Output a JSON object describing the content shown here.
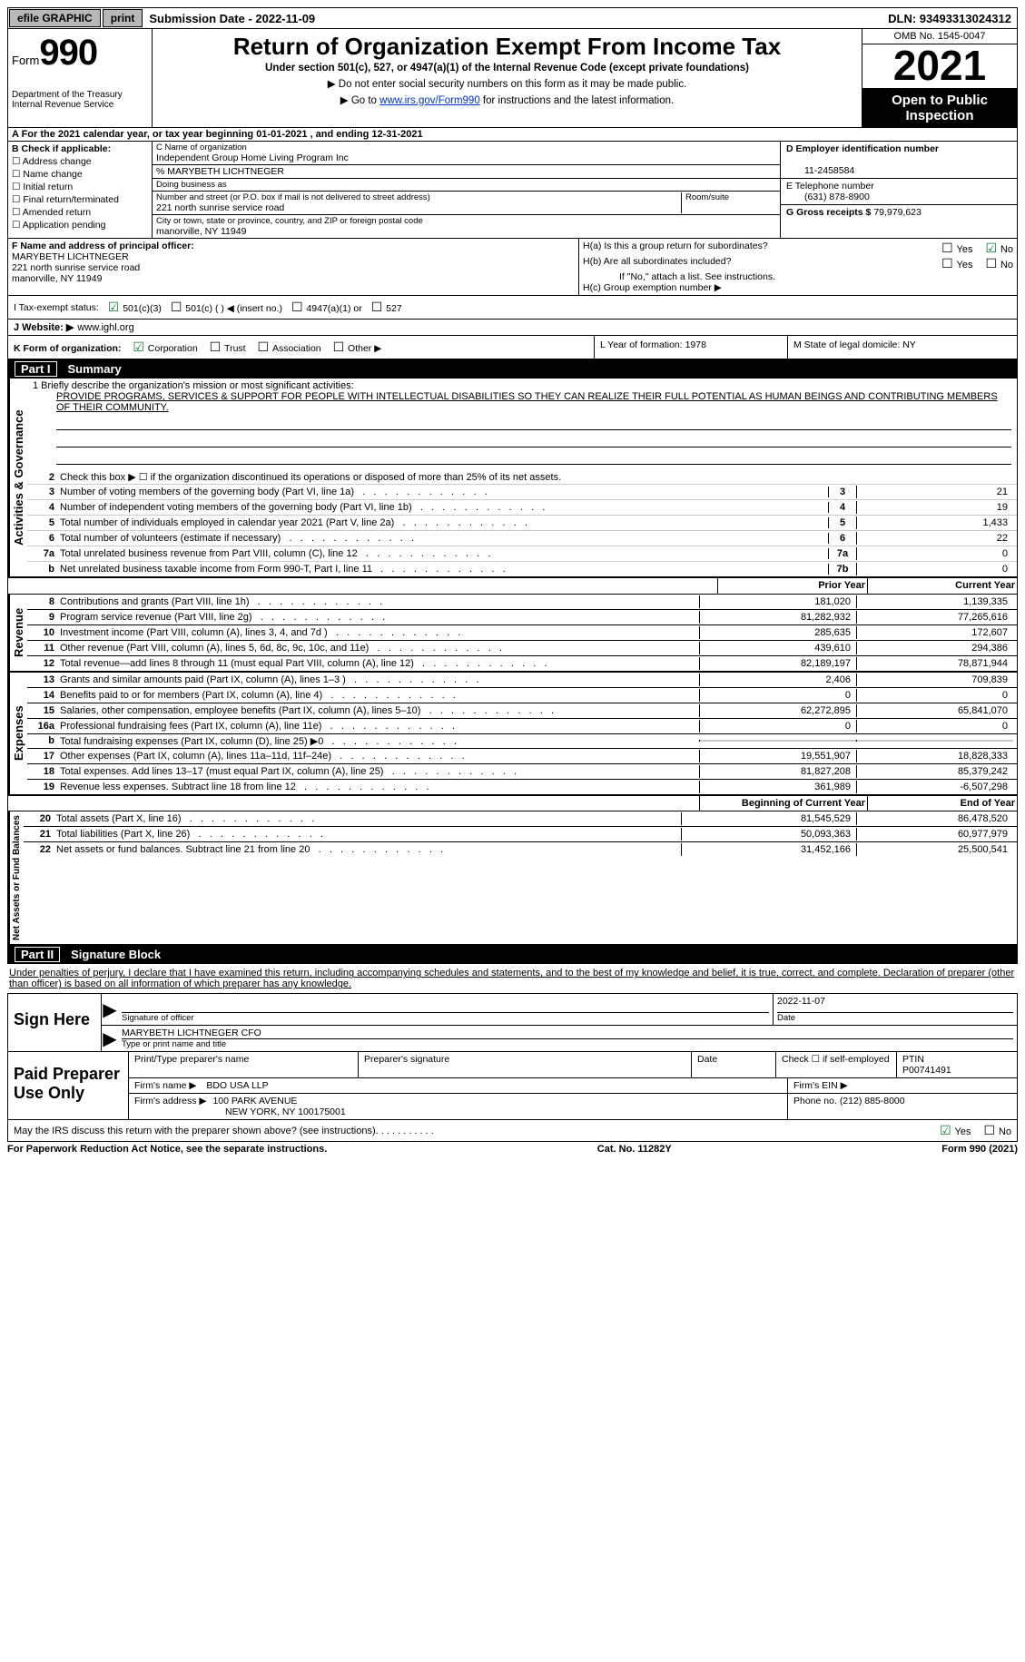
{
  "topbar": {
    "efile": "efile GRAPHIC",
    "print": "print",
    "subdate_label": "Submission Date - 2022-11-09",
    "dln": "DLN: 93493313024312"
  },
  "header": {
    "form_small": "Form",
    "form_big": "990",
    "dept": "Department of the Treasury",
    "irs": "Internal Revenue Service",
    "title": "Return of Organization Exempt From Income Tax",
    "sub1": "Under section 501(c), 527, or 4947(a)(1) of the Internal Revenue Code (except private foundations)",
    "sub2": "▶ Do not enter social security numbers on this form as it may be made public.",
    "sub3_pre": "▶ Go to ",
    "sub3_link": "www.irs.gov/Form990",
    "sub3_post": " for instructions and the latest information.",
    "omb": "OMB No. 1545-0047",
    "year": "2021",
    "open": "Open to Public Inspection"
  },
  "rowA": "A For the 2021 calendar year, or tax year beginning 01-01-2021   , and ending 12-31-2021",
  "colB": {
    "label": "B Check if applicable:",
    "items": [
      "Address change",
      "Name change",
      "Initial return",
      "Final return/terminated",
      "Amended return",
      "Application pending"
    ]
  },
  "colC": {
    "name_lbl": "C Name of organization",
    "name": "Independent Group Home Living Program Inc",
    "care": "% MARYBETH LICHTNEGER",
    "dba_lbl": "Doing business as",
    "addr_lbl": "Number and street (or P.O. box if mail is not delivered to street address)",
    "addr": "221 north sunrise service road",
    "room_lbl": "Room/suite",
    "city_lbl": "City or town, state or province, country, and ZIP or foreign postal code",
    "city": "manorville, NY  11949"
  },
  "colD": {
    "ein_lbl": "D Employer identification number",
    "ein": "11-2458584",
    "tel_lbl": "E Telephone number",
    "tel": "(631) 878-8900",
    "gross_lbl": "G Gross receipts $",
    "gross": "79,979,623"
  },
  "rowF": {
    "f_lbl": "F Name and address of principal officer:",
    "name": "MARYBETH LICHTNEGER",
    "addr1": "221 north sunrise service road",
    "addr2": "manorville, NY  11949",
    "ha": "H(a)  Is this a group return for subordinates?",
    "hb": "H(b)  Are all subordinates included?",
    "hb_note": "If \"No,\" attach a list. See instructions.",
    "hc": "H(c)  Group exemption number ▶"
  },
  "tax": {
    "label": "I   Tax-exempt status:",
    "c3": "501(c)(3)",
    "c": "501(c) (  ) ◀ (insert no.)",
    "a1": "4947(a)(1) or",
    "s527": "527"
  },
  "rowJ": {
    "label": "J   Website: ▶ ",
    "site": "www.ighl.org"
  },
  "rowK": {
    "k": "K Form of organization:",
    "corp": "Corporation",
    "trust": "Trust",
    "assoc": "Association",
    "other": "Other ▶",
    "l": "L Year of formation: 1978",
    "m": "M State of legal domicile: NY"
  },
  "part1": {
    "hdr": "Summary",
    "q1_lbl": "1   Briefly describe the organization's mission or most significant activities:",
    "q1_txt": "PROVIDE PROGRAMS, SERVICES & SUPPORT FOR PEOPLE WITH INTELLECTUAL DISABILITIES SO THEY CAN REALIZE THEIR FULL POTENTIAL AS HUMAN BEINGS AND CONTRIBUTING MEMBERS OF THEIR COMMUNITY.",
    "q2": "Check this box ▶ ☐  if the organization discontinued its operations or disposed of more than 25% of its net assets.",
    "lines_gov": [
      {
        "n": "3",
        "t": "Number of voting members of the governing body (Part VI, line 1a)",
        "box": "3",
        "v": "21"
      },
      {
        "n": "4",
        "t": "Number of independent voting members of the governing body (Part VI, line 1b)",
        "box": "4",
        "v": "19"
      },
      {
        "n": "5",
        "t": "Total number of individuals employed in calendar year 2021 (Part V, line 2a)",
        "box": "5",
        "v": "1,433"
      },
      {
        "n": "6",
        "t": "Total number of volunteers (estimate if necessary)",
        "box": "6",
        "v": "22"
      },
      {
        "n": "7a",
        "t": "Total unrelated business revenue from Part VIII, column (C), line 12",
        "box": "7a",
        "v": "0"
      },
      {
        "n": "b",
        "t": "Net unrelated business taxable income from Form 990-T, Part I, line 11",
        "box": "7b",
        "v": "0"
      }
    ],
    "prior_hdr": "Prior Year",
    "curr_hdr": "Current Year",
    "rev": [
      {
        "n": "8",
        "t": "Contributions and grants (Part VIII, line 1h)",
        "p": "181,020",
        "c": "1,139,335"
      },
      {
        "n": "9",
        "t": "Program service revenue (Part VIII, line 2g)",
        "p": "81,282,932",
        "c": "77,265,616"
      },
      {
        "n": "10",
        "t": "Investment income (Part VIII, column (A), lines 3, 4, and 7d )",
        "p": "285,635",
        "c": "172,607"
      },
      {
        "n": "11",
        "t": "Other revenue (Part VIII, column (A), lines 5, 6d, 8c, 9c, 10c, and 11e)",
        "p": "439,610",
        "c": "294,386"
      },
      {
        "n": "12",
        "t": "Total revenue—add lines 8 through 11 (must equal Part VIII, column (A), line 12)",
        "p": "82,189,197",
        "c": "78,871,944"
      }
    ],
    "exp": [
      {
        "n": "13",
        "t": "Grants and similar amounts paid (Part IX, column (A), lines 1–3 )",
        "p": "2,406",
        "c": "709,839"
      },
      {
        "n": "14",
        "t": "Benefits paid to or for members (Part IX, column (A), line 4)",
        "p": "0",
        "c": "0"
      },
      {
        "n": "15",
        "t": "Salaries, other compensation, employee benefits (Part IX, column (A), lines 5–10)",
        "p": "62,272,895",
        "c": "65,841,070"
      },
      {
        "n": "16a",
        "t": "Professional fundraising fees (Part IX, column (A), line 11e)",
        "p": "0",
        "c": "0"
      },
      {
        "n": "b",
        "t": "Total fundraising expenses (Part IX, column (D), line 25) ▶0",
        "p": "",
        "c": "",
        "shade": true
      },
      {
        "n": "17",
        "t": "Other expenses (Part IX, column (A), lines 11a–11d, 11f–24e)",
        "p": "19,551,907",
        "c": "18,828,333"
      },
      {
        "n": "18",
        "t": "Total expenses. Add lines 13–17 (must equal Part IX, column (A), line 25)",
        "p": "81,827,208",
        "c": "85,379,242"
      },
      {
        "n": "19",
        "t": "Revenue less expenses. Subtract line 18 from line 12",
        "p": "361,989",
        "c": "-6,507,298"
      }
    ],
    "beg_hdr": "Beginning of Current Year",
    "end_hdr": "End of Year",
    "net": [
      {
        "n": "20",
        "t": "Total assets (Part X, line 16)",
        "p": "81,545,529",
        "c": "86,478,520"
      },
      {
        "n": "21",
        "t": "Total liabilities (Part X, line 26)",
        "p": "50,093,363",
        "c": "60,977,979"
      },
      {
        "n": "22",
        "t": "Net assets or fund balances. Subtract line 21 from line 20",
        "p": "31,452,166",
        "c": "25,500,541"
      }
    ],
    "vlabels": {
      "gov": "Activities & Governance",
      "rev": "Revenue",
      "exp": "Expenses",
      "net": "Net Assets or Fund Balances"
    }
  },
  "part2": {
    "hdr": "Signature Block",
    "penalties": "Under penalties of perjury, I declare that I have examined this return, including accompanying schedules and statements, and to the best of my knowledge and belief, it is true, correct, and complete. Declaration of preparer (other than officer) is based on all information of which preparer has any knowledge.",
    "sign_here": "Sign Here",
    "sig_officer": "Signature of officer",
    "sig_date": "2022-11-07",
    "date_lbl": "Date",
    "name_title": "MARYBETH LICHTNEGER CFO",
    "name_title_lbl": "Type or print name and title",
    "paid": "Paid Preparer Use Only",
    "prep_name_lbl": "Print/Type preparer's name",
    "prep_sig_lbl": "Preparer's signature",
    "prep_date_lbl": "Date",
    "check_self": "Check ☐ if self-employed",
    "ptin_lbl": "PTIN",
    "ptin": "P00741491",
    "firm_name_lbl": "Firm's name   ▶",
    "firm_name": "BDO USA LLP",
    "firm_ein_lbl": "Firm's EIN ▶",
    "firm_addr_lbl": "Firm's address ▶",
    "firm_addr1": "100 PARK AVENUE",
    "firm_addr2": "NEW YORK, NY  100175001",
    "phone_lbl": "Phone no.",
    "phone": "(212) 885-8000",
    "may_irs": "May the IRS discuss this return with the preparer shown above? (see instructions)"
  },
  "footer": {
    "left": "For Paperwork Reduction Act Notice, see the separate instructions.",
    "mid": "Cat. No. 11282Y",
    "right": "Form 990 (2021)"
  }
}
